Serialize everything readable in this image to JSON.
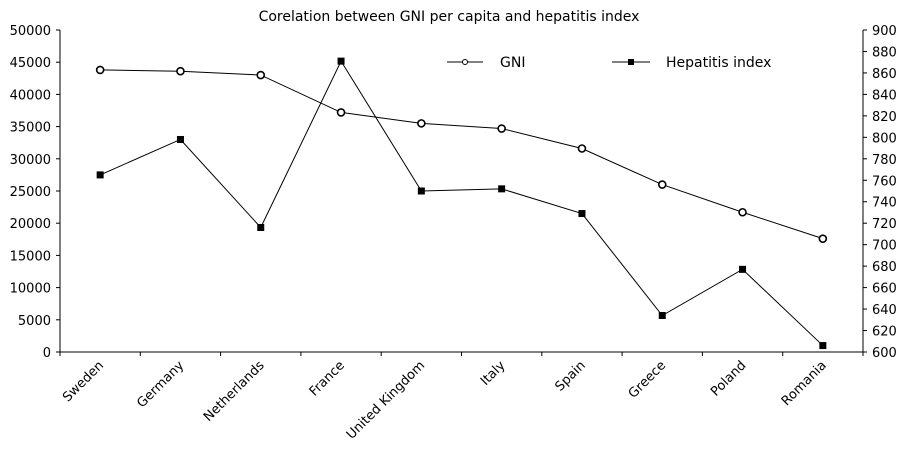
{
  "chart_data": {
    "type": "line",
    "title": "Corelation between GNI per capita and hepatitis index",
    "categories": [
      "Sweden",
      "Germany",
      "Netherlands",
      "France",
      "United Kingdom",
      "Italy",
      "Spain",
      "Greece",
      "Poland",
      "Romania"
    ],
    "series": [
      {
        "name": "GNI",
        "axis": "left",
        "marker": "open-circle",
        "values": [
          43800,
          43600,
          43000,
          37200,
          35500,
          34700,
          31600,
          26000,
          21700,
          17600
        ]
      },
      {
        "name": "Hepatitis index",
        "axis": "right",
        "marker": "filled-square",
        "values": [
          765,
          798,
          716,
          871,
          750,
          752,
          729,
          634,
          677,
          606
        ]
      }
    ],
    "y_left": {
      "min": 0,
      "max": 50000,
      "step": 5000,
      "ticks": [
        "0",
        "5000",
        "10000",
        "15000",
        "20000",
        "25000",
        "30000",
        "35000",
        "40000",
        "45000",
        "50000"
      ]
    },
    "y_right": {
      "min": 600,
      "max": 900,
      "step": 20,
      "ticks": [
        "600",
        "620",
        "640",
        "660",
        "680",
        "700",
        "720",
        "740",
        "760",
        "780",
        "800",
        "820",
        "840",
        "860",
        "880",
        "900"
      ]
    },
    "legend_position": "top-right",
    "grid": false,
    "colors": {
      "line": "#000000",
      "background": "#ffffff"
    }
  }
}
